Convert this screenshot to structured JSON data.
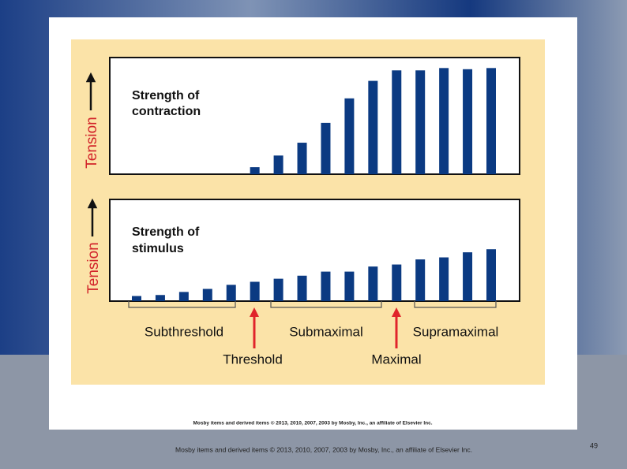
{
  "chart_data": [
    {
      "type": "bar",
      "title_lines": [
        "Strength of",
        "contraction"
      ],
      "ylabel": "Tension",
      "categories": [
        null,
        null,
        null,
        null,
        null,
        null,
        null,
        null,
        null,
        null,
        null,
        null,
        null,
        null,
        null,
        null
      ],
      "values": [
        0,
        0,
        0,
        0,
        0,
        6,
        16,
        27,
        44,
        65,
        80,
        89,
        89,
        91,
        90,
        91
      ],
      "color": "#0b3a82",
      "ylim": [
        0,
        100
      ]
    },
    {
      "type": "bar",
      "title_lines": [
        "Strength of",
        "stimulus"
      ],
      "ylabel": "Tension",
      "categories": [
        null,
        null,
        null,
        null,
        null,
        null,
        null,
        null,
        null,
        null,
        null,
        null,
        null,
        null,
        null,
        null
      ],
      "values": [
        5,
        6,
        9,
        12,
        16,
        19,
        22,
        25,
        29,
        29,
        34,
        36,
        41,
        43,
        48,
        51
      ],
      "color": "#0b3a82",
      "ylim": [
        0,
        100
      ],
      "annotations": [
        "Subthreshold",
        "Submaximal",
        "Supramaximal",
        "Threshold",
        "Maximal"
      ]
    }
  ],
  "figure_credit": "Mosby items and derived items © 2013, 2010, 2007, 2003 by Mosby, Inc., an affiliate of Elsevier Inc.",
  "footer": "Mosby items and derived items © 2013, 2010, 2007, 2003 by Mosby, Inc., an affiliate of Elsevier Inc.",
  "page_number": "49"
}
